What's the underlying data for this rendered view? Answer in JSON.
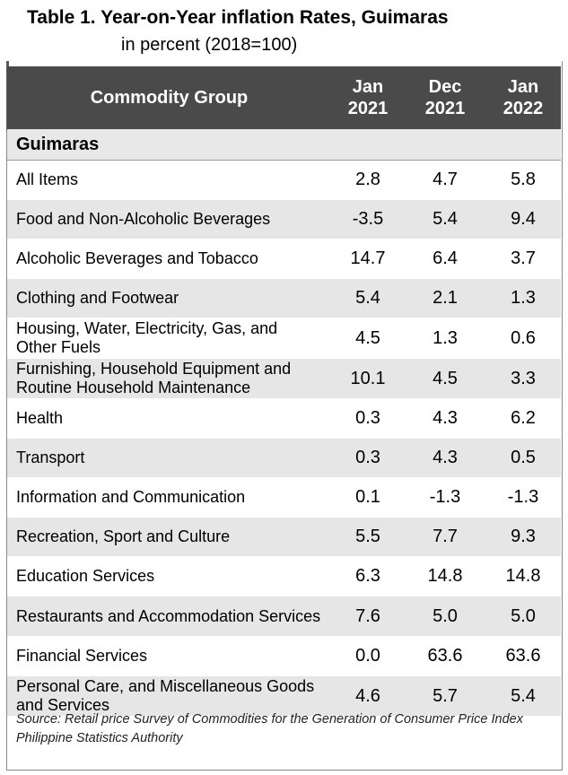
{
  "title": "Table 1. Year-on-Year inflation Rates, Guimaras",
  "subtitle": "in percent (2018=100)",
  "table": {
    "headers": {
      "group": "Commodity Group",
      "cols": [
        {
          "line1": "Jan",
          "line2": "2021"
        },
        {
          "line1": "Dec",
          "line2": "2021"
        },
        {
          "line1": "Jan",
          "line2": "2022"
        }
      ]
    },
    "region": "Guimaras",
    "rows": [
      {
        "label": "All Items",
        "values": [
          "2.8",
          "4.7",
          "5.8"
        ]
      },
      {
        "label": "Food and Non-Alcoholic Beverages",
        "values": [
          "-3.5",
          "5.4",
          "9.4"
        ]
      },
      {
        "label": "Alcoholic Beverages and Tobacco",
        "values": [
          "14.7",
          "6.4",
          "3.7"
        ]
      },
      {
        "label": "Clothing and Footwear",
        "values": [
          "5.4",
          "2.1",
          "1.3"
        ]
      },
      {
        "label": "Housing, Water, Electricity, Gas, and Other Fuels",
        "values": [
          "4.5",
          "1.3",
          "0.6"
        ]
      },
      {
        "label": "Furnishing, Household Equipment and Routine Household Maintenance",
        "values": [
          "10.1",
          "4.5",
          "3.3"
        ]
      },
      {
        "label": "Health",
        "values": [
          "0.3",
          "4.3",
          "6.2"
        ]
      },
      {
        "label": "Transport",
        "values": [
          "0.3",
          "4.3",
          "0.5"
        ]
      },
      {
        "label": "Information and Communication",
        "values": [
          "0.1",
          "-1.3",
          "-1.3"
        ]
      },
      {
        "label": "Recreation, Sport and Culture",
        "values": [
          "5.5",
          "7.7",
          "9.3"
        ]
      },
      {
        "label": "Education Services",
        "values": [
          "6.3",
          "14.8",
          "14.8"
        ]
      },
      {
        "label": "Restaurants and Accommodation Services",
        "values": [
          "7.6",
          "5.0",
          "5.0"
        ]
      },
      {
        "label": "Financial Services",
        "values": [
          "0.0",
          "63.6",
          "63.6"
        ]
      },
      {
        "label": "Personal Care, and Miscellaneous Goods and Services",
        "values": [
          "4.6",
          "5.7",
          "5.4"
        ]
      }
    ]
  },
  "source": "Source: Retail price Survey of Commodities for the Generation of Consumer Price Index Philippine Statistics Authority"
}
